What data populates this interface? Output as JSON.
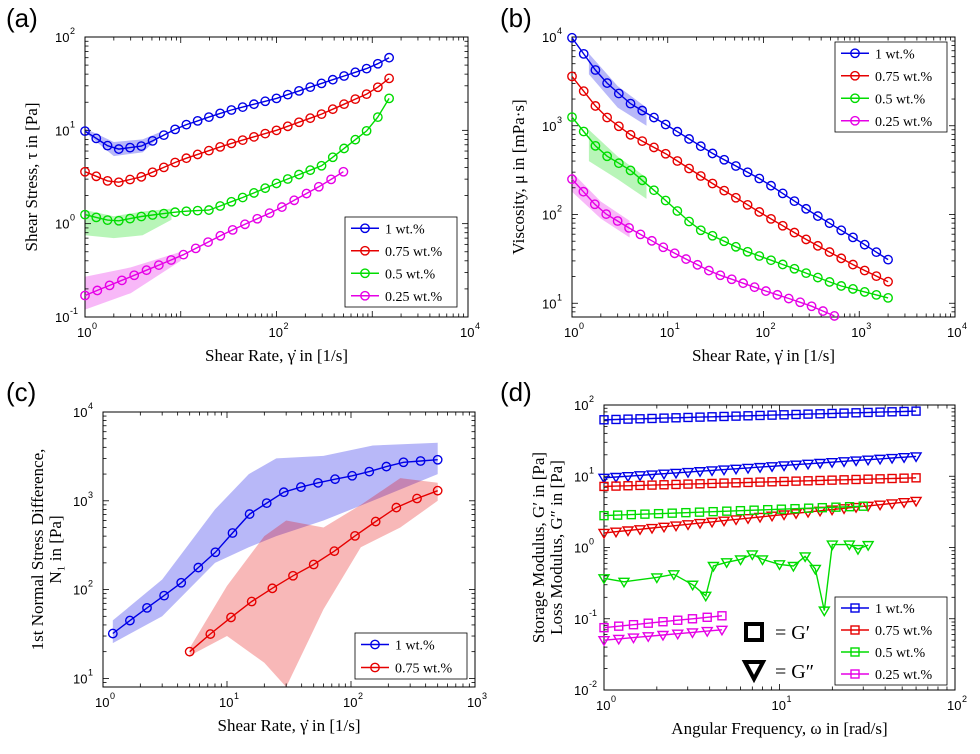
{
  "panels": {
    "a": {
      "label": "(a)"
    },
    "b": {
      "label": "(b)"
    },
    "c": {
      "label": "(c)"
    },
    "d": {
      "label": "(d)"
    }
  },
  "symbol_key": {
    "storage": "= G′",
    "loss": "= G″"
  },
  "colors": {
    "1 wt.%": "#0000e6",
    "0.75 wt.%": "#e60000",
    "0.5 wt.%": "#00dc00",
    "0.25 wt.%": "#e600e6"
  },
  "chart_data": [
    {
      "id": "a",
      "type": "line",
      "xscale": "log",
      "yscale": "log",
      "xlim": [
        1,
        10000
      ],
      "ylim": [
        0.1,
        100
      ],
      "xticks": [
        {
          "base": "10",
          "exp": "0"
        },
        {
          "base": "10",
          "exp": "2"
        },
        {
          "base": "10",
          "exp": "4"
        }
      ],
      "yticks": [
        {
          "base": "10",
          "exp": "-1"
        },
        {
          "base": "10",
          "exp": "0"
        },
        {
          "base": "10",
          "exp": "1"
        },
        {
          "base": "10",
          "exp": "2"
        }
      ],
      "xlabel": "Shear Rate, γ̇ in [1/s]",
      "ylabel": "Shear Stress, τ in [Pa]",
      "legend": {
        "position": "bottom-right",
        "entries": [
          "1 wt.%",
          "0.75 wt.%",
          "0.5 wt.%",
          "0.25 wt.%"
        ]
      },
      "series": [
        {
          "name": "1 wt.%",
          "color": "#0000e6",
          "marker": "circle",
          "x_range": [
            1,
            1500
          ],
          "points": [
            [
              1,
              9.8
            ],
            [
              2,
              6.2
            ],
            [
              4,
              6.8
            ],
            [
              10,
              11
            ],
            [
              30,
              16
            ],
            [
              100,
              22
            ],
            [
              300,
              32
            ],
            [
              1000,
              48
            ],
            [
              1500,
              60
            ]
          ],
          "band": [
            [
              1,
              9.5,
              10.5
            ],
            [
              2,
              5.3,
              7.5
            ],
            [
              4,
              5.8,
              8
            ],
            [
              6,
              8.5,
              9.5
            ]
          ]
        },
        {
          "name": "0.75 wt.%",
          "color": "#e60000",
          "marker": "circle",
          "x_range": [
            1,
            1500
          ],
          "points": [
            [
              1,
              3.6
            ],
            [
              2,
              2.7
            ],
            [
              4,
              3.2
            ],
            [
              10,
              4.8
            ],
            [
              30,
              7
            ],
            [
              100,
              10
            ],
            [
              300,
              15
            ],
            [
              1000,
              26
            ],
            [
              1500,
              36
            ]
          ],
          "band": []
        },
        {
          "name": "0.5 wt.%",
          "color": "#00dc00",
          "marker": "circle",
          "x_range": [
            1,
            1500
          ],
          "points": [
            [
              1,
              1.25
            ],
            [
              2,
              1.05
            ],
            [
              4,
              1.2
            ],
            [
              10,
              1.35
            ],
            [
              20,
              1.4
            ],
            [
              50,
              2
            ],
            [
              100,
              2.7
            ],
            [
              300,
              4.2
            ],
            [
              1000,
              11
            ],
            [
              1500,
              22
            ]
          ],
          "band": [
            [
              1,
              0.75,
              1.4
            ],
            [
              2,
              0.7,
              1.2
            ],
            [
              4,
              0.75,
              1.35
            ],
            [
              8,
              1.1,
              1.45
            ]
          ]
        },
        {
          "name": "0.25 wt.%",
          "color": "#e600e6",
          "marker": "circle",
          "x_range": [
            1,
            500
          ],
          "points": [
            [
              1,
              0.17
            ],
            [
              3,
              0.27
            ],
            [
              10,
              0.45
            ],
            [
              30,
              0.8
            ],
            [
              100,
              1.4
            ],
            [
              300,
              2.6
            ],
            [
              500,
              3.6
            ]
          ],
          "band": [
            [
              1,
              0.12,
              0.27
            ],
            [
              3,
              0.18,
              0.34
            ],
            [
              10,
              0.4,
              0.5
            ]
          ]
        }
      ]
    },
    {
      "id": "b",
      "type": "line",
      "xscale": "log",
      "yscale": "log",
      "xlim": [
        1,
        10000
      ],
      "ylim": [
        7,
        10000
      ],
      "xticks": [
        {
          "base": "10",
          "exp": "0"
        },
        {
          "base": "10",
          "exp": "1"
        },
        {
          "base": "10",
          "exp": "2"
        },
        {
          "base": "10",
          "exp": "3"
        },
        {
          "base": "10",
          "exp": "4"
        }
      ],
      "yticks": [
        {
          "base": "10",
          "exp": "1"
        },
        {
          "base": "10",
          "exp": "2"
        },
        {
          "base": "10",
          "exp": "3"
        },
        {
          "base": "10",
          "exp": "4"
        }
      ],
      "xlabel": "Shear Rate, γ̇ in [1/s]",
      "ylabel": "Viscosity, μ in [mPa·s]",
      "legend": {
        "position": "top-right",
        "entries": [
          "1 wt.%",
          "0.75 wt.%",
          "0.5 wt.%",
          "0.25 wt.%"
        ]
      },
      "series": [
        {
          "name": "1 wt.%",
          "color": "#0000e6",
          "marker": "circle",
          "x_range": [
            1,
            2000
          ],
          "points": [
            [
              1,
              9800
            ],
            [
              2,
              3500
            ],
            [
              4,
              1800
            ],
            [
              10,
              1000
            ],
            [
              30,
              480
            ],
            [
              100,
              240
            ],
            [
              300,
              110
            ],
            [
              1000,
              50
            ],
            [
              2000,
              31
            ]
          ],
          "band": [
            [
              1.5,
              3800,
              6500
            ],
            [
              3,
              1600,
              2800
            ],
            [
              6,
              1000,
              1600
            ]
          ]
        },
        {
          "name": "0.75 wt.%",
          "color": "#e60000",
          "marker": "circle",
          "x_range": [
            1,
            2000
          ],
          "points": [
            [
              1,
              3600
            ],
            [
              2,
              1400
            ],
            [
              4,
              800
            ],
            [
              10,
              470
            ],
            [
              30,
              220
            ],
            [
              100,
              100
            ],
            [
              300,
              50
            ],
            [
              1000,
              25
            ],
            [
              2000,
              17.5
            ]
          ],
          "band": []
        },
        {
          "name": "0.5 wt.%",
          "color": "#00dc00",
          "marker": "circle",
          "x_range": [
            1,
            2000
          ],
          "points": [
            [
              1,
              1250
            ],
            [
              2,
              500
            ],
            [
              4,
              320
            ],
            [
              8,
              170
            ],
            [
              20,
              70
            ],
            [
              60,
              40
            ],
            [
              200,
              25
            ],
            [
              600,
              16
            ],
            [
              2000,
              11.5
            ]
          ],
          "band": [
            [
              1.5,
              400,
              900
            ],
            [
              3,
              250,
              450
            ],
            [
              6,
              150,
              260
            ]
          ]
        },
        {
          "name": "0.25 wt.%",
          "color": "#e600e6",
          "marker": "circle",
          "x_range": [
            1,
            550
          ],
          "points": [
            [
              1,
              250
            ],
            [
              2,
              110
            ],
            [
              4,
              70
            ],
            [
              10,
              40
            ],
            [
              30,
              22
            ],
            [
              100,
              14
            ],
            [
              300,
              9.5
            ],
            [
              550,
              7.2
            ]
          ],
          "band": [
            [
              1,
              180,
              300
            ],
            [
              2,
              90,
              140
            ],
            [
              4,
              55,
              85
            ]
          ]
        }
      ]
    },
    {
      "id": "c",
      "type": "line",
      "xscale": "log",
      "yscale": "log",
      "xlim": [
        1,
        1000
      ],
      "ylim": [
        8,
        10000
      ],
      "xticks": [
        {
          "base": "10",
          "exp": "0"
        },
        {
          "base": "10",
          "exp": "1"
        },
        {
          "base": "10",
          "exp": "2"
        },
        {
          "base": "10",
          "exp": "3"
        }
      ],
      "yticks": [
        {
          "base": "10",
          "exp": "1"
        },
        {
          "base": "10",
          "exp": "2"
        },
        {
          "base": "10",
          "exp": "3"
        },
        {
          "base": "10",
          "exp": "4"
        }
      ],
      "xlabel": "Shear Rate, γ̇ in [1/s]",
      "ylabel": "1st Normal Stress Difference,",
      "ylabel2": "N₁ in [Pa]",
      "legend": {
        "position": "bottom-right",
        "entries": [
          "1 wt.%",
          "0.75 wt.%"
        ]
      },
      "series": [
        {
          "name": "1 wt.%",
          "color": "#0000e6",
          "marker": "circle",
          "x_range": [
            1.2,
            500
          ],
          "points": [
            [
              1.2,
              32
            ],
            [
              2,
              55
            ],
            [
              4,
              110
            ],
            [
              8,
              260
            ],
            [
              15,
              700
            ],
            [
              30,
              1300
            ],
            [
              60,
              1650
            ],
            [
              120,
              2000
            ],
            [
              250,
              2700
            ],
            [
              500,
              2900
            ]
          ],
          "band": [
            [
              1.2,
              25,
              45
            ],
            [
              3,
              50,
              130
            ],
            [
              8,
              200,
              800
            ],
            [
              15,
              300,
              2000
            ],
            [
              25,
              400,
              3000
            ],
            [
              60,
              600,
              3200
            ],
            [
              150,
              1000,
              4200
            ],
            [
              500,
              2000,
              4500
            ]
          ]
        },
        {
          "name": "0.75 wt.%",
          "color": "#e60000",
          "marker": "circle",
          "x_range": [
            5,
            500
          ],
          "points": [
            [
              5,
              20
            ],
            [
              8,
              35
            ],
            [
              15,
              70
            ],
            [
              30,
              130
            ],
            [
              60,
              220
            ],
            [
              120,
              450
            ],
            [
              250,
              900
            ],
            [
              500,
              1300
            ]
          ],
          "band": [
            [
              5,
              18,
              22
            ],
            [
              10,
              30,
              110
            ],
            [
              20,
              15,
              400
            ],
            [
              30,
              8,
              600
            ],
            [
              60,
              60,
              500
            ],
            [
              120,
              300,
              900
            ],
            [
              250,
              500,
              1800
            ],
            [
              500,
              1000,
              1600
            ]
          ]
        }
      ]
    },
    {
      "id": "d",
      "type": "line",
      "xscale": "log",
      "yscale": "log",
      "xlim": [
        1,
        100
      ],
      "ylim": [
        0.01,
        100
      ],
      "xticks": [
        {
          "base": "10",
          "exp": "0"
        },
        {
          "base": "10",
          "exp": "1"
        },
        {
          "base": "10",
          "exp": "2"
        }
      ],
      "yticks": [
        {
          "base": "10",
          "exp": "-2"
        },
        {
          "base": "10",
          "exp": "-1"
        },
        {
          "base": "10",
          "exp": "0"
        },
        {
          "base": "10",
          "exp": "1"
        },
        {
          "base": "10",
          "exp": "2"
        }
      ],
      "xlabel": "Angular Frequency, ω in [rad/s]",
      "ylabel": "Storage Modulus, G′ in [Pa]",
      "ylabel2": "Loss Modulus, G″ in [Pa]",
      "legend": {
        "position": "bottom-right",
        "entries": [
          "1 wt.%",
          "0.75 wt.%",
          "0.5 wt.%",
          "0.25 wt.%"
        ]
      },
      "series": [
        {
          "name": "1 wt.% G′",
          "color": "#0000e6",
          "marker": "square",
          "points": [
            [
              1,
              62
            ],
            [
              60,
              82
            ]
          ]
        },
        {
          "name": "1 wt.% G″",
          "color": "#0000e6",
          "marker": "triangle",
          "points": [
            [
              1,
              9.5
            ],
            [
              60,
              19
            ]
          ]
        },
        {
          "name": "0.75 wt.% G′",
          "color": "#e60000",
          "marker": "square",
          "points": [
            [
              1,
              7.2
            ],
            [
              60,
              9.5
            ]
          ]
        },
        {
          "name": "0.75 wt.% G″",
          "color": "#e60000",
          "marker": "triangle",
          "points": [
            [
              1,
              1.6
            ],
            [
              60,
              4.5
            ]
          ]
        },
        {
          "name": "0.5 wt.% G′",
          "color": "#00dc00",
          "marker": "square",
          "points": [
            [
              1,
              2.8
            ],
            [
              30,
              3.8
            ]
          ]
        },
        {
          "name": "0.5 wt.% G″",
          "color": "#00dc00",
          "marker": "triangle",
          "points": [
            [
              1,
              0.37
            ],
            [
              1.3,
              0.33
            ],
            [
              2,
              0.38
            ],
            [
              2.5,
              0.42
            ],
            [
              3.2,
              0.3
            ],
            [
              3.8,
              0.21
            ],
            [
              4.2,
              0.55
            ],
            [
              5,
              0.62
            ],
            [
              6,
              0.68
            ],
            [
              7,
              0.8
            ],
            [
              8,
              0.68
            ],
            [
              10,
              0.58
            ],
            [
              12,
              0.55
            ],
            [
              14,
              0.75
            ],
            [
              16,
              0.5
            ],
            [
              18,
              0.13
            ],
            [
              20,
              1.1
            ],
            [
              25,
              1.1
            ],
            [
              28,
              0.95
            ],
            [
              32,
              1.08
            ]
          ]
        },
        {
          "name": "0.25 wt.% G′",
          "color": "#e600e6",
          "marker": "square",
          "points": [
            [
              1,
              0.075
            ],
            [
              4.7,
              0.11
            ]
          ]
        },
        {
          "name": "0.25 wt.% G″",
          "color": "#e600e6",
          "marker": "triangle",
          "points": [
            [
              1,
              0.05
            ],
            [
              4.7,
              0.07
            ]
          ]
        }
      ]
    }
  ]
}
